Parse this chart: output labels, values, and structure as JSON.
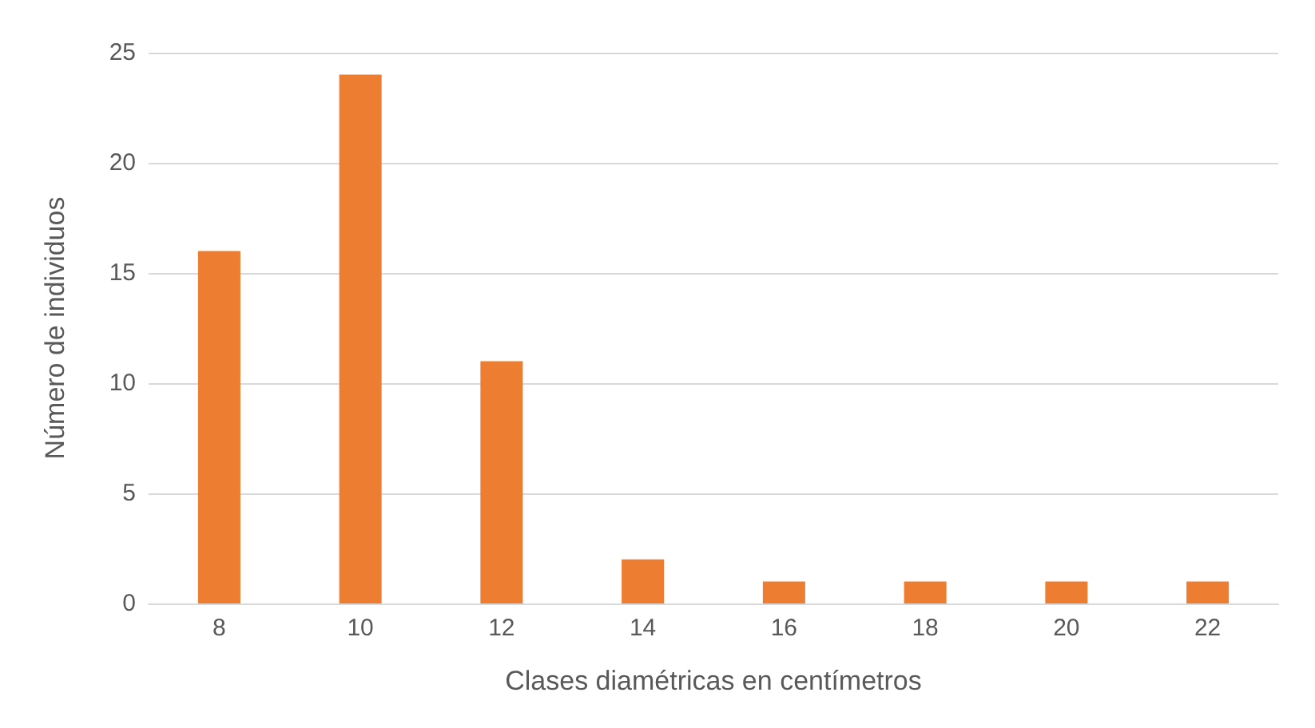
{
  "chart_data": {
    "type": "bar",
    "xlabel": "Clases diamétricas en centímetros",
    "ylabel": "Número de individuos",
    "categories": [
      "8",
      "10",
      "12",
      "14",
      "16",
      "18",
      "20",
      "22"
    ],
    "values": [
      16,
      24,
      11,
      2,
      1,
      1,
      1,
      1
    ],
    "color": "#ed7d31",
    "ylim": [
      0,
      25
    ],
    "yticks": [
      0,
      5,
      10,
      15,
      20,
      25
    ],
    "grid": "y"
  }
}
